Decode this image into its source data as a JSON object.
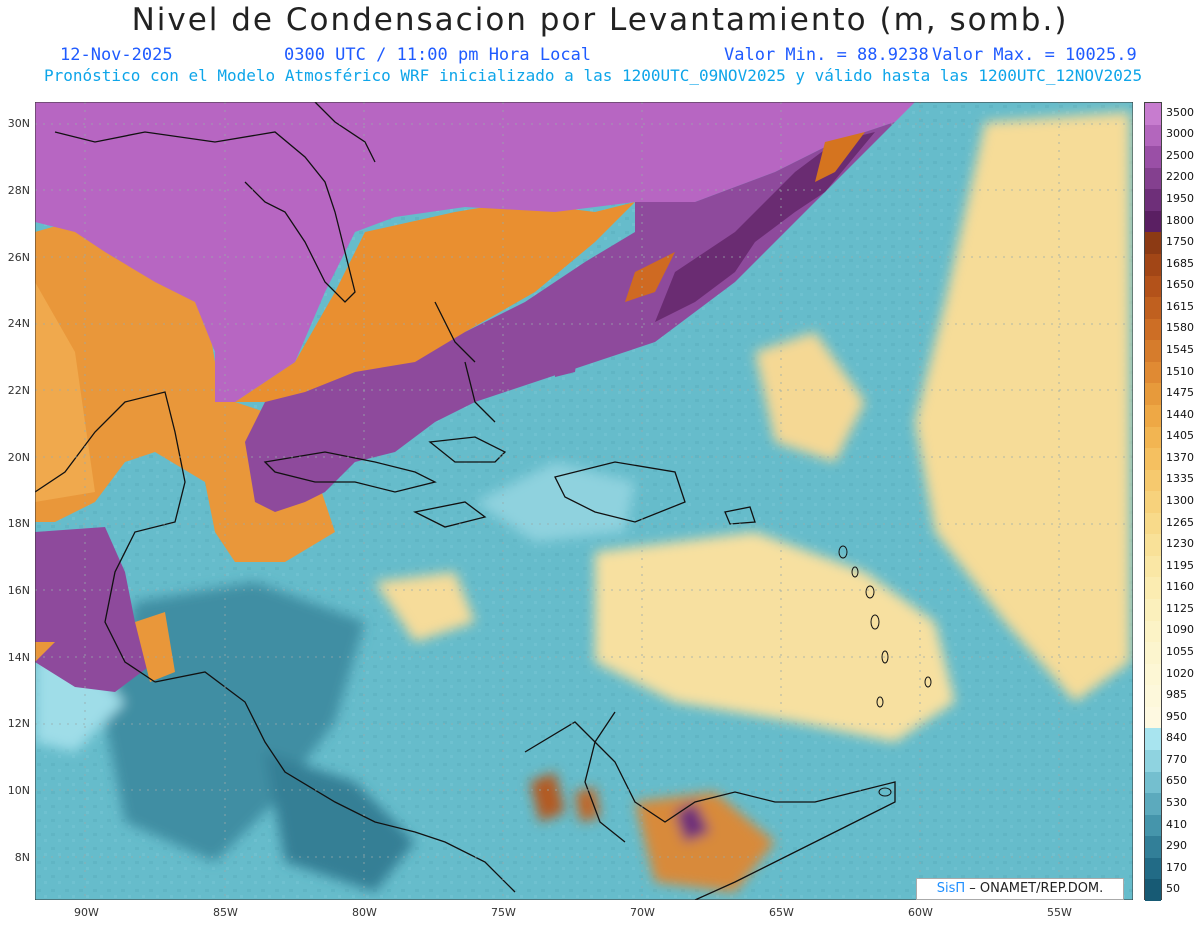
{
  "header": {
    "title": "Nivel de Condensacion por Levantamiento (m, somb.)",
    "date": "12-Nov-2025",
    "time": "0300 UTC / 11:00 pm Hora Local",
    "min_value": "Valor Min. = 88.9238",
    "max_value": "Valor Max. = 10025.9",
    "model_info": "Pronóstico con el Modelo Atmosférico WRF inicializado a las 1200UTC_09NOV2025 y válido hasta las  1200UTC_12NOV2025"
  },
  "axes": {
    "lat_labels": [
      "30N",
      "28N",
      "26N",
      "24N",
      "22N",
      "20N",
      "18N",
      "16N",
      "14N",
      "12N",
      "10N",
      "8N"
    ],
    "lon_labels": [
      "90W",
      "85W",
      "80W",
      "75W",
      "70W",
      "65W",
      "60W",
      "55W"
    ]
  },
  "colorbar": {
    "labels": [
      "3500",
      "3000",
      "2500",
      "2200",
      "1950",
      "1800",
      "1750",
      "1685",
      "1650",
      "1615",
      "1580",
      "1545",
      "1510",
      "1475",
      "1440",
      "1405",
      "1370",
      "1335",
      "1300",
      "1265",
      "1230",
      "1195",
      "1160",
      "1125",
      "1090",
      "1055",
      "1020",
      "985",
      "950",
      "840",
      "770",
      "650",
      "530",
      "410",
      "290",
      "170",
      "50"
    ],
    "colors": [
      "#c77ccf",
      "#b366bd",
      "#9a4fa6",
      "#84408f",
      "#6e2f79",
      "#5a1f62",
      "#8c3a14",
      "#a24616",
      "#b3521a",
      "#c0601f",
      "#cd6e25",
      "#d67c2c",
      "#e08a33",
      "#e79a3b",
      "#eea845",
      "#f2b552",
      "#f5c060",
      "#f6c96e",
      "#f7d27c",
      "#f8da8a",
      "#f9e198",
      "#fae7a5",
      "#fbecb1",
      "#fbf0bc",
      "#fcf3c6",
      "#fcf5ce",
      "#fdf7d5",
      "#fdf8db",
      "#fef9e1",
      "#a8e4ef",
      "#8fd3e0",
      "#74bfcf",
      "#5caabd",
      "#4595ab",
      "#327f98",
      "#226b86",
      "#175a74"
    ]
  },
  "credit": {
    "brand": "SisΠ",
    "org": "– ONAMET/REP.DOM."
  },
  "palette": {
    "purple": "#b264bf",
    "orange": "#e9973a",
    "teal": "#5fb8c8",
    "cream": "#f7e3a5"
  }
}
